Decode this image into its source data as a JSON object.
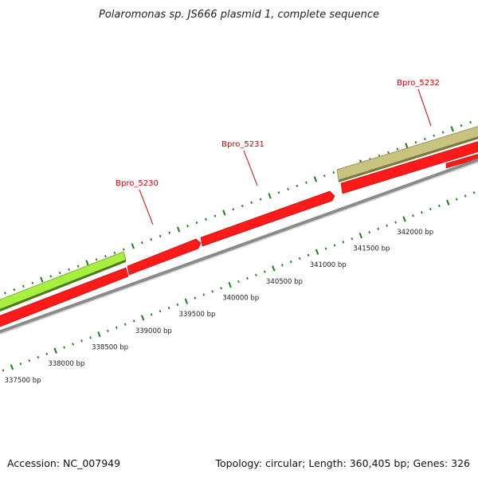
{
  "title": "Polaromonas sp. JS666 plasmid 1, complete sequence",
  "footer": {
    "accession": "Accession: NC_007949",
    "summary": "Topology: circular; Length: 360,405 bp; Genes: 326"
  },
  "colors": {
    "label": "#cc0000",
    "tick": "#1a7f1a",
    "backbone": "#888888",
    "gene_red": "#ff1a1a",
    "gene_green": "#a8f040",
    "gene_khaki": "#bdb76b"
  },
  "genes": [
    {
      "label": "Bpro_5230"
    },
    {
      "label": "Bpro_5231"
    },
    {
      "label": "Bpro_5232"
    }
  ],
  "scale_labels": [
    "337500 bp",
    "338000 bp",
    "338500 bp",
    "339000 bp",
    "339500 bp",
    "340000 bp",
    "340500 bp",
    "341000 bp",
    "341500 bp",
    "342000 bp"
  ]
}
